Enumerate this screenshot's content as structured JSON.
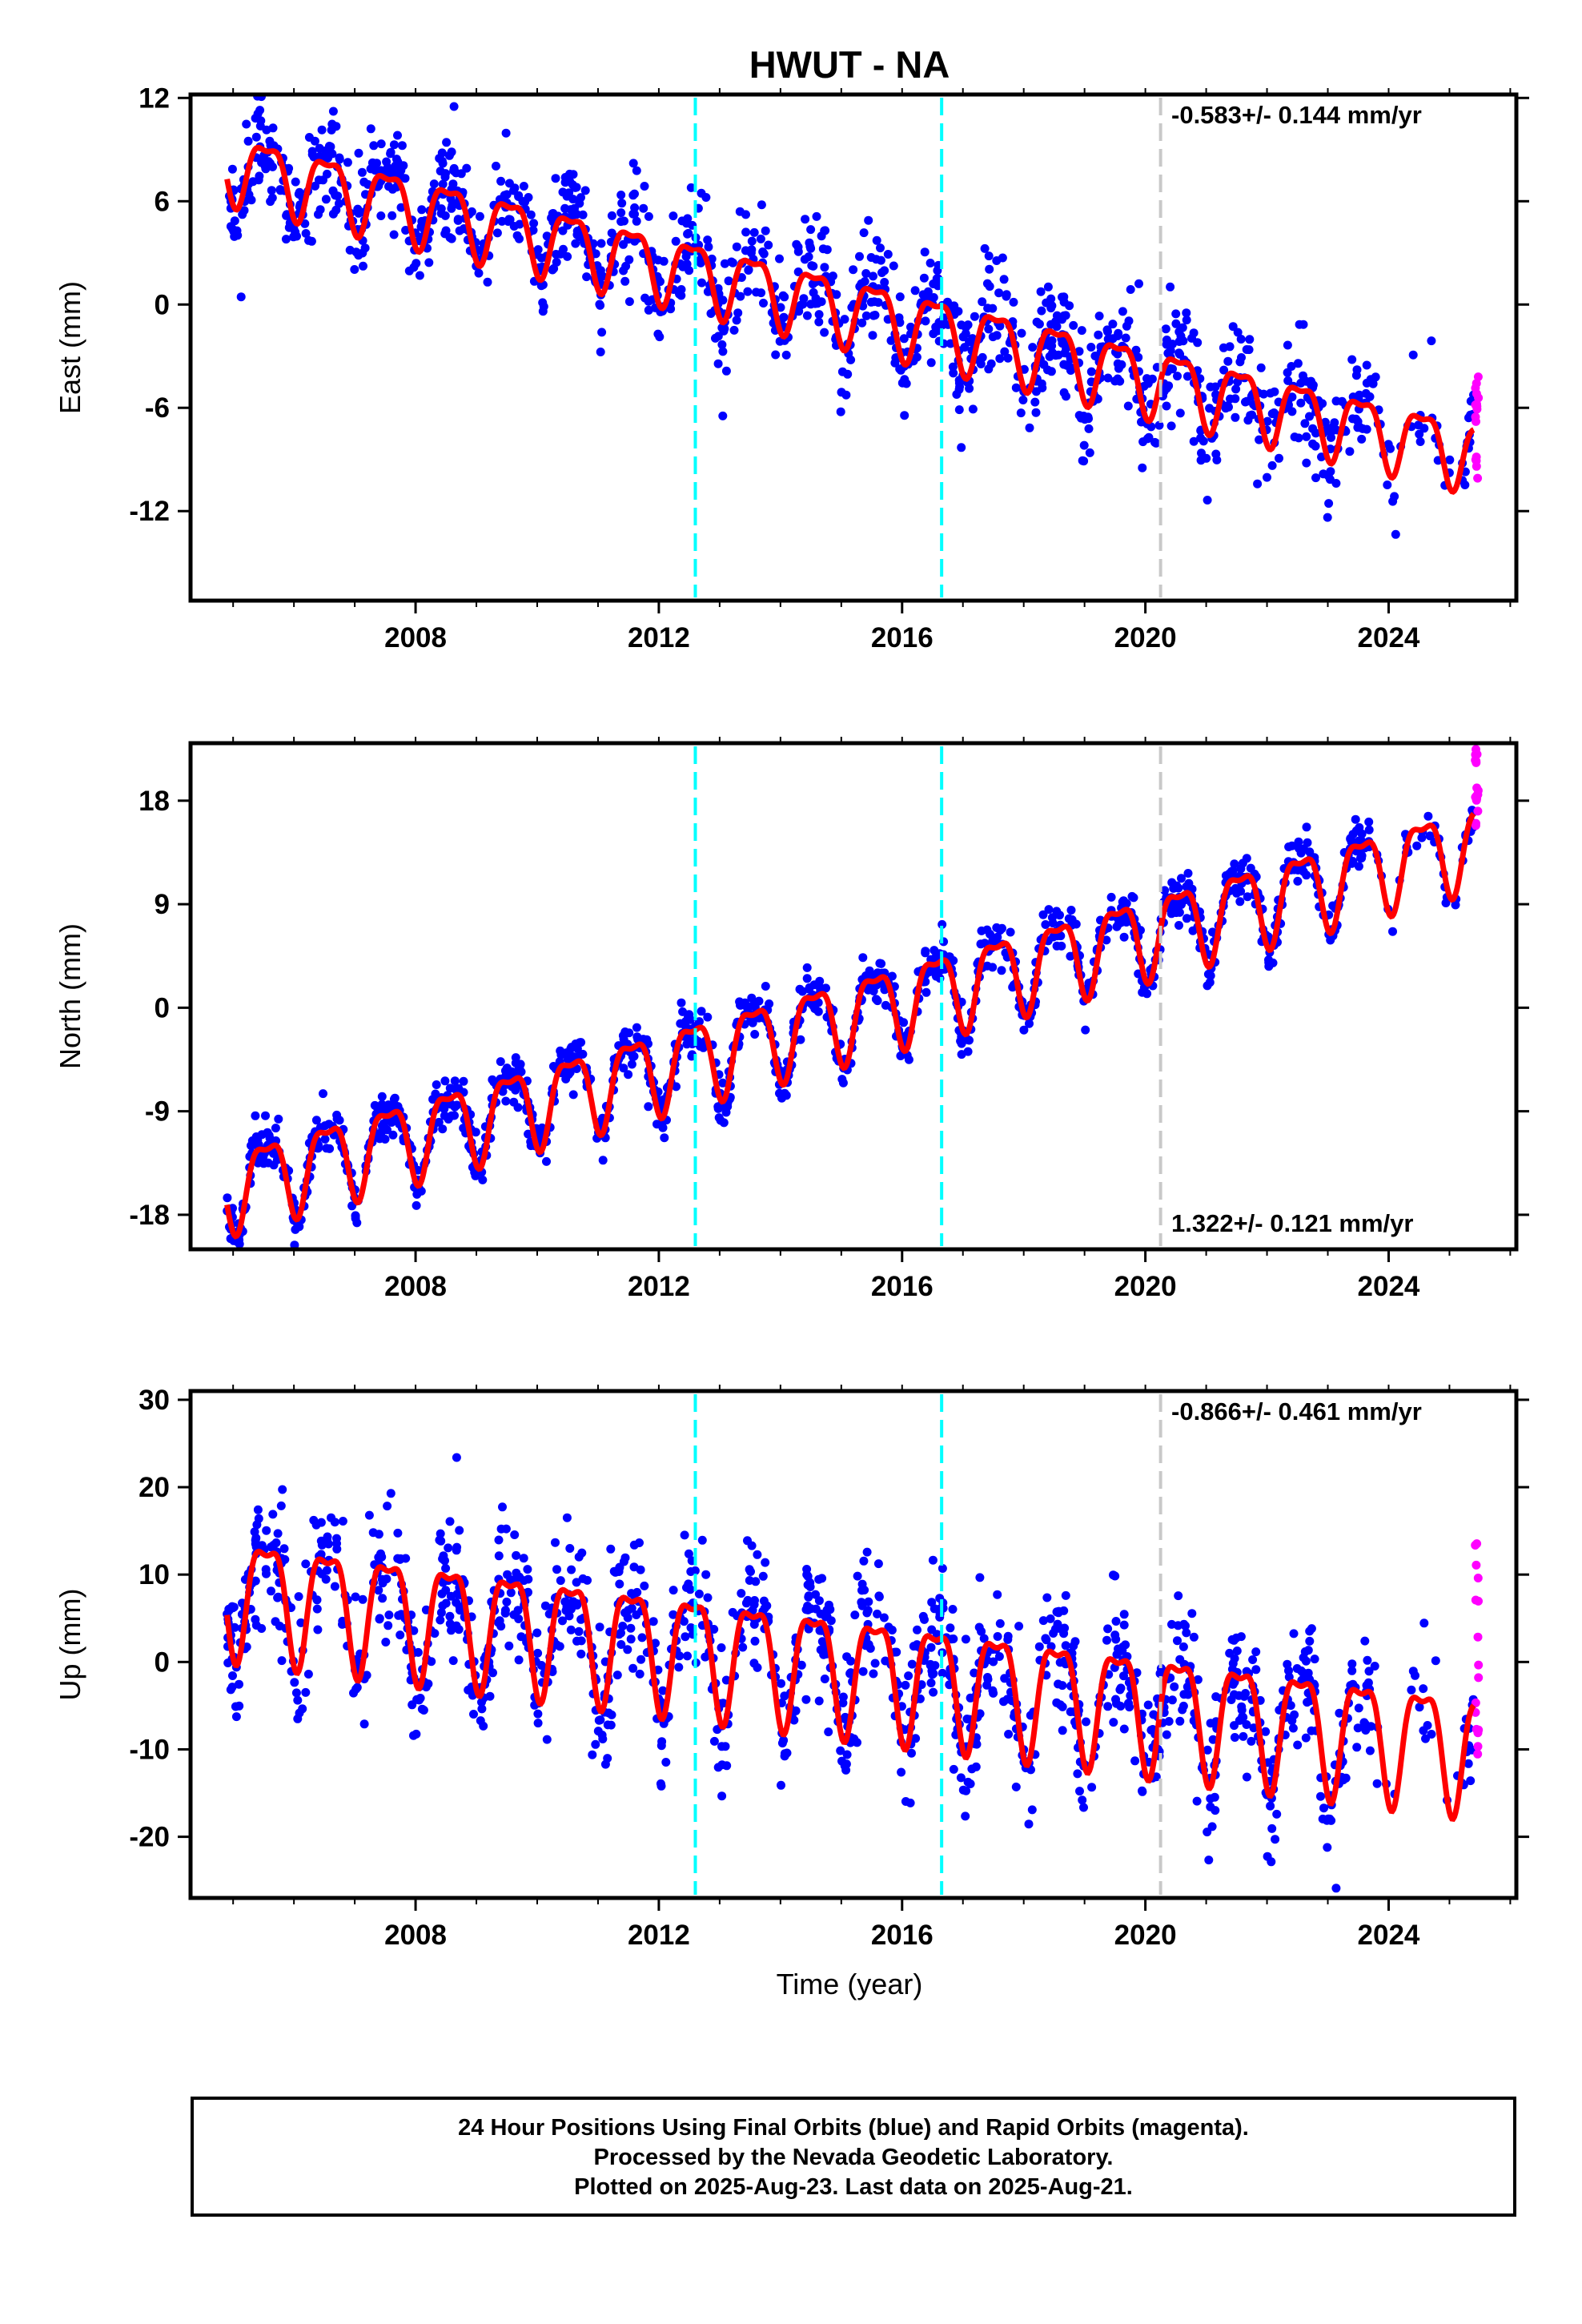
{
  "title": "HWUT - NA",
  "xlabel": "Time (year)",
  "footer": {
    "line1": "24 Hour Positions Using Final Orbits (blue) and Rapid Orbits (magenta).",
    "line2": "Processed by the Nevada Geodetic Laboratory.",
    "line3": "Plotted on 2025-Aug-23. Last data on 2025-Aug-21."
  },
  "colors": {
    "final": "#0000ff",
    "rapid": "#ff00ff",
    "model": "#ff0000",
    "antenna_change": "#00ffff",
    "other_event": "#c8c8c8"
  },
  "chart_data": {
    "type": "scatter",
    "xlim": [
      2004.3,
      2026.1
    ],
    "x_ticks": [
      2008,
      2012,
      2016,
      2020,
      2024
    ],
    "event_lines": [
      {
        "x": 2012.6,
        "color": "cyan"
      },
      {
        "x": 2016.65,
        "color": "cyan"
      },
      {
        "x": 2020.25,
        "color": "gray"
      }
    ],
    "panels": [
      {
        "ylabel": "East (mm)",
        "ylim": [
          -17.2,
          12.2
        ],
        "ticks": [
          -12,
          -6,
          0,
          6,
          12
        ],
        "rate": "-0.583+/- 0.144 mm/yr",
        "rate_position": "top-right",
        "trend_start": 8.2,
        "trend_end": -8.6,
        "annual_amp": 1.9,
        "scatter": 1.6,
        "rapid_range": [
          -10.5,
          -4.2
        ]
      },
      {
        "ylabel": "North (mm)",
        "ylim": [
          -21,
          23
        ],
        "ticks": [
          -18,
          -9,
          0,
          9,
          18
        ],
        "rate": "1.322+/- 0.121 mm/yr",
        "rate_position": "bottom-right",
        "trend_start": -15.5,
        "trend_end": 14.5,
        "annual_amp": 3.4,
        "scatter": 1.0,
        "rapid_range": [
          15.8,
          22.5
        ]
      },
      {
        "ylabel": "Up (mm)",
        "ylim": [
          -27,
          31
        ],
        "ticks": [
          -20,
          -10,
          0,
          10,
          20,
          30
        ],
        "rate": "-0.866+/- 0.461 mm/yr",
        "rate_position": "top-right",
        "trend_start": 8.5,
        "trend_end": -9.5,
        "annual_amp": 6.5,
        "scatter": 3.8,
        "rapid_range": [
          -11,
          13.8
        ]
      }
    ]
  }
}
